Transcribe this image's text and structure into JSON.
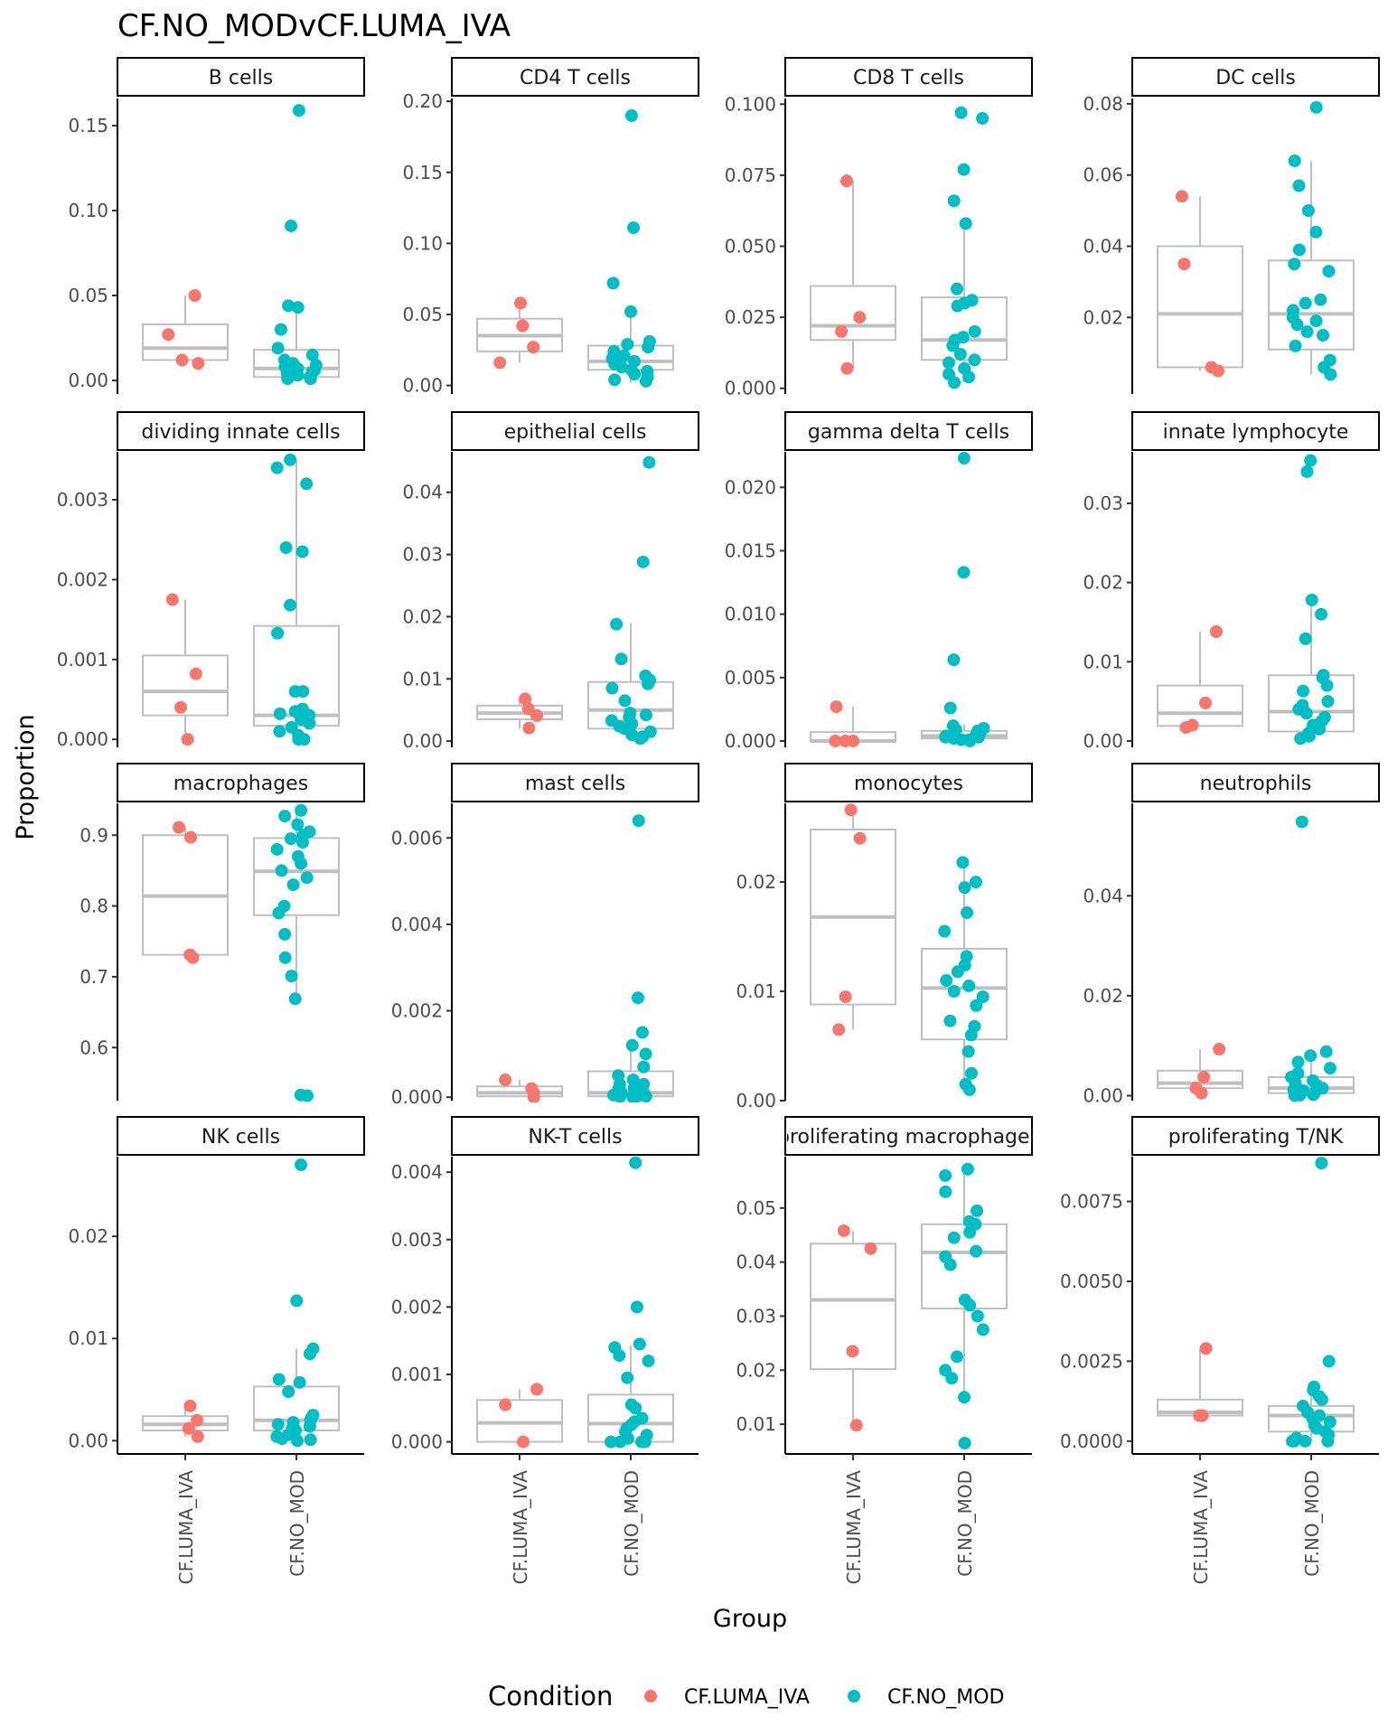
{
  "chart_data": {
    "type": "boxplot",
    "title": "CF.NO_MODvCF.LUMA_IVA",
    "xlabel": "Group",
    "ylabel": "Proportion",
    "categories": [
      "CF.LUMA_IVA",
      "CF.NO_MOD"
    ],
    "legend": {
      "title": "Condition",
      "placement": "bottom",
      "entries": [
        {
          "name": "CF.LUMA_IVA",
          "color": "#F8766D"
        },
        {
          "name": "CF.NO_MOD",
          "color": "#00BFC4"
        }
      ]
    },
    "box_color": "#bfbfbf",
    "grid": false,
    "panels": [
      {
        "title": "B cells",
        "ylim": [
          -0.008,
          0.166
        ],
        "yticks": [
          "0.00",
          "0.05",
          "0.10",
          "0.15"
        ],
        "yticks_values": [
          0,
          0.05,
          0.1,
          0.15
        ],
        "boxes": [
          [
            0.011,
            0.012,
            0.019,
            0.033,
            0.05
          ],
          [
            0,
            0.002,
            0.007,
            0.018,
            0.044
          ]
        ],
        "points": [
          [
            0.05,
            0.027,
            0.012,
            0.01
          ],
          [
            0.159,
            0.091,
            0.044,
            0.043,
            0.03,
            0.019,
            0.015,
            0.012,
            0.01,
            0.009,
            0.008,
            0.007,
            0.006,
            0.005,
            0.004,
            0.003,
            0.002,
            0.002,
            0.001,
            0.001
          ]
        ]
      },
      {
        "title": "CD4 T cells",
        "ylim": [
          -0.006,
          0.202
        ],
        "yticks": [
          "0.00",
          "0.05",
          "0.10",
          "0.15",
          "0.20"
        ],
        "yticks_values": [
          0,
          0.05,
          0.1,
          0.15,
          0.2
        ],
        "boxes": [
          [
            0.016,
            0.024,
            0.035,
            0.047,
            0.058
          ],
          [
            0.002,
            0.011,
            0.017,
            0.028,
            0.051
          ]
        ],
        "points": [
          [
            0.058,
            0.042,
            0.027,
            0.016
          ],
          [
            0.19,
            0.111,
            0.072,
            0.052,
            0.031,
            0.029,
            0.027,
            0.024,
            0.021,
            0.019,
            0.017,
            0.016,
            0.015,
            0.013,
            0.011,
            0.01,
            0.008,
            0.006,
            0.004,
            0.003
          ]
        ]
      },
      {
        "title": "CD8 T cells",
        "ylim": [
          -0.002,
          0.102
        ],
        "yticks": [
          "0.000",
          "0.025",
          "0.050",
          "0.075",
          "0.100"
        ],
        "yticks_values": [
          0,
          0.025,
          0.05,
          0.075,
          0.1
        ],
        "boxes": [
          [
            0.007,
            0.017,
            0.022,
            0.036,
            0.073
          ],
          [
            0.002,
            0.01,
            0.017,
            0.032,
            0.058
          ]
        ],
        "points": [
          [
            0.073,
            0.025,
            0.02,
            0.007
          ],
          [
            0.097,
            0.095,
            0.077,
            0.066,
            0.058,
            0.035,
            0.031,
            0.03,
            0.029,
            0.02,
            0.018,
            0.017,
            0.015,
            0.012,
            0.01,
            0.009,
            0.007,
            0.005,
            0.004,
            0.002
          ]
        ]
      },
      {
        "title": "DC cells",
        "ylim": [
          -0.0015,
          0.0815
        ],
        "yticks": [
          "0.02",
          "0.04",
          "0.06",
          "0.08"
        ],
        "yticks_values": [
          0.02,
          0.04,
          0.06,
          0.08
        ],
        "boxes": [
          [
            0.005,
            0.006,
            0.021,
            0.04,
            0.054
          ],
          [
            0.004,
            0.011,
            0.021,
            0.036,
            0.064
          ]
        ],
        "points": [
          [
            0.054,
            0.035,
            0.006,
            0.005
          ],
          [
            0.079,
            0.064,
            0.057,
            0.05,
            0.044,
            0.039,
            0.035,
            0.033,
            0.025,
            0.024,
            0.022,
            0.02,
            0.019,
            0.018,
            0.016,
            0.015,
            0.012,
            0.008,
            0.006,
            0.004
          ]
        ]
      },
      {
        "title": "dividing innate cells",
        "ylim": [
          -0.0001,
          0.0036
        ],
        "yticks": [
          "0.000",
          "0.001",
          "0.002",
          "0.003"
        ],
        "yticks_values": [
          0,
          0.001,
          0.002,
          0.003
        ],
        "boxes": [
          [
            0.0,
            0.0003,
            0.0006,
            0.00105,
            0.00175
          ],
          [
            0.0,
            0.00017,
            0.0003,
            0.00142,
            0.0035
          ]
        ],
        "points": [
          [
            0.00175,
            0.00082,
            0.0004,
            0.0
          ],
          [
            0.0035,
            0.0034,
            0.0032,
            0.0024,
            0.00235,
            0.00168,
            0.00133,
            0.0006,
            0.0006,
            0.00038,
            0.00035,
            0.00032,
            0.0003,
            0.00025,
            0.0002,
            0.00015,
            0.0001,
            5e-05,
            0.0,
            0.0
          ]
        ]
      },
      {
        "title": "epithelial cells",
        "ylim": [
          -0.001,
          0.0465
        ],
        "yticks": [
          "0.00",
          "0.01",
          "0.02",
          "0.03",
          "0.04"
        ],
        "yticks_values": [
          0,
          0.01,
          0.02,
          0.03,
          0.04
        ],
        "boxes": [
          [
            0.002,
            0.0035,
            0.0045,
            0.0057,
            0.0068
          ],
          [
            0.0,
            0.002,
            0.005,
            0.0095,
            0.019
          ]
        ],
        "points": [
          [
            0.0068,
            0.0052,
            0.0041,
            0.0021
          ],
          [
            0.0448,
            0.0288,
            0.0188,
            0.0132,
            0.0105,
            0.0098,
            0.0092,
            0.0085,
            0.0065,
            0.0045,
            0.0042,
            0.0038,
            0.0033,
            0.0028,
            0.0024,
            0.002,
            0.0015,
            0.001,
            0.0007,
            0.0004
          ]
        ]
      },
      {
        "title": "gamma delta T cells",
        "ylim": [
          -0.0005,
          0.0228
        ],
        "yticks": [
          "0.000",
          "0.005",
          "0.010",
          "0.015",
          "0.020"
        ],
        "yticks_values": [
          0,
          0.005,
          0.01,
          0.015,
          0.02
        ],
        "boxes": [
          [
            0.0,
            0.0,
            0.0,
            0.0007,
            0.0027
          ],
          [
            0.0,
            0.0002,
            0.0004,
            0.0008,
            0.0013
          ]
        ],
        "points": [
          [
            0.0027,
            0.0,
            0.0,
            0.0
          ],
          [
            0.0223,
            0.0133,
            0.0064,
            0.0026,
            0.0012,
            0.001,
            0.0009,
            0.0008,
            0.0007,
            0.0006,
            0.0005,
            0.0004,
            0.0004,
            0.0003,
            0.0003,
            0.0002,
            0.0002,
            0.0001,
            0.0001,
            0.0
          ]
        ]
      },
      {
        "title": "innate lymphocyte",
        "ylim": [
          -0.0008,
          0.0365
        ],
        "yticks": [
          "0.00",
          "0.01",
          "0.02",
          "0.03"
        ],
        "yticks_values": [
          0,
          0.01,
          0.02,
          0.03
        ],
        "boxes": [
          [
            0.0018,
            0.0019,
            0.0035,
            0.007,
            0.0138
          ],
          [
            0.0,
            0.0012,
            0.0037,
            0.0083,
            0.0176
          ]
        ],
        "points": [
          [
            0.0138,
            0.0048,
            0.002,
            0.0017
          ],
          [
            0.0354,
            0.034,
            0.0178,
            0.016,
            0.0129,
            0.0083,
            0.008,
            0.007,
            0.0063,
            0.005,
            0.0045,
            0.004,
            0.0035,
            0.003,
            0.0025,
            0.002,
            0.0015,
            0.001,
            0.0006,
            0.0003
          ]
        ]
      },
      {
        "title": "macrophages",
        "ylim": [
          0.525,
          0.945
        ],
        "yticks": [
          "0.6",
          "0.7",
          "0.8",
          "0.9"
        ],
        "yticks_values": [
          0.6,
          0.7,
          0.8,
          0.9
        ],
        "boxes": [
          [
            0.727,
            0.731,
            0.814,
            0.9,
            0.911
          ],
          [
            0.675,
            0.787,
            0.849,
            0.896,
            0.935
          ]
        ],
        "points": [
          [
            0.911,
            0.897,
            0.731,
            0.727
          ],
          [
            0.935,
            0.927,
            0.915,
            0.905,
            0.9,
            0.895,
            0.89,
            0.88,
            0.87,
            0.86,
            0.85,
            0.84,
            0.83,
            0.8,
            0.79,
            0.76,
            0.727,
            0.701,
            0.669,
            0.533,
            0.532
          ]
        ]
      },
      {
        "title": "mast cells",
        "ylim": [
          -8e-05,
          0.0068
        ],
        "yticks": [
          "0.000",
          "0.002",
          "0.004",
          "0.006"
        ],
        "yticks_values": [
          0,
          0.002,
          0.004,
          0.006
        ],
        "boxes": [
          [
            0.0,
            2e-05,
            0.0001,
            0.00025,
            0.0004
          ],
          [
            0.0,
            2e-05,
            0.0001,
            0.0006,
            0.0012
          ]
        ],
        "points": [
          [
            0.0004,
            0.0002,
            0.0001,
            0.0
          ],
          [
            0.0064,
            0.0023,
            0.0015,
            0.0012,
            0.001,
            0.0007,
            0.0005,
            0.0004,
            0.0003,
            0.0003,
            0.0002,
            0.0002,
            0.0001,
            0.0001,
            5e-05,
            3e-05,
            2e-05,
            1e-05,
            0.0,
            0.0
          ]
        ]
      },
      {
        "title": "monocytes",
        "ylim": [
          0.0,
          0.0272
        ],
        "yticks": [
          "0.00",
          "0.01",
          "0.02"
        ],
        "yticks_values": [
          0,
          0.01,
          0.02
        ],
        "boxes": [
          [
            0.0065,
            0.0088,
            0.0168,
            0.0248,
            0.0266
          ],
          [
            0.0015,
            0.0056,
            0.0103,
            0.0139,
            0.0218
          ]
        ],
        "points": [
          [
            0.0266,
            0.024,
            0.0095,
            0.0065
          ],
          [
            0.0218,
            0.02,
            0.0195,
            0.0172,
            0.0155,
            0.0132,
            0.0124,
            0.0118,
            0.011,
            0.0105,
            0.01,
            0.0095,
            0.0087,
            0.0073,
            0.0068,
            0.006,
            0.0045,
            0.0025,
            0.0015,
            0.001
          ]
        ]
      },
      {
        "title": "neutrophils",
        "ylim": [
          -0.001,
          0.0585
        ],
        "yticks": [
          "0.00",
          "0.02",
          "0.04"
        ],
        "yticks_values": [
          0,
          0.02,
          0.04
        ],
        "boxes": [
          [
            0.0005,
            0.0015,
            0.0025,
            0.005,
            0.0093
          ],
          [
            0.0,
            0.0005,
            0.0015,
            0.0037,
            0.0088
          ]
        ],
        "points": [
          [
            0.0093,
            0.0037,
            0.0015,
            0.0005
          ],
          [
            0.0548,
            0.0088,
            0.008,
            0.0067,
            0.0055,
            0.0045,
            0.0037,
            0.003,
            0.0025,
            0.002,
            0.0017,
            0.0015,
            0.0012,
            0.001,
            0.0008,
            0.0006,
            0.0004,
            0.0002,
            0.0001,
            0.0
          ]
        ]
      },
      {
        "title": "NK cells",
        "ylim": [
          -0.0013,
          0.0278
        ],
        "yticks": [
          "0.00",
          "0.01",
          "0.02"
        ],
        "yticks_values": [
          0,
          0.01,
          0.02
        ],
        "boxes": [
          [
            0.0004,
            0.001,
            0.0016,
            0.0024,
            0.0034
          ],
          [
            0.0,
            0.001,
            0.002,
            0.0053,
            0.009
          ]
        ],
        "points": [
          [
            0.0034,
            0.002,
            0.0012,
            0.0004
          ],
          [
            0.027,
            0.0137,
            0.009,
            0.0085,
            0.006,
            0.0057,
            0.0048,
            0.0025,
            0.0022,
            0.002,
            0.0018,
            0.0016,
            0.0014,
            0.0012,
            0.001,
            0.0006,
            0.0004,
            0.0002,
            0.0001,
            0.0
          ]
        ]
      },
      {
        "title": "NK-T cells",
        "ylim": [
          -0.00018,
          0.00423
        ],
        "yticks": [
          "0.000",
          "0.001",
          "0.002",
          "0.003",
          "0.004"
        ],
        "yticks_values": [
          0,
          0.001,
          0.002,
          0.003,
          0.004
        ],
        "boxes": [
          [
            0.0,
            0.0,
            0.00028,
            0.00062,
            0.00078
          ],
          [
            0.0,
            0.0,
            0.00027,
            0.0007,
            0.00143
          ]
        ],
        "points": [
          [
            0.00078,
            0.00055,
            0.0
          ],
          [
            0.00414,
            0.002,
            0.00145,
            0.0014,
            0.00128,
            0.0012,
            0.00095,
            0.00055,
            0.0005,
            0.00035,
            0.0003,
            0.00025,
            0.0002,
            0.00015,
            0.0001,
            5e-05,
            0.0,
            0.0,
            0.0,
            0.0
          ]
        ]
      },
      {
        "title": "proliferating macrophages",
        "ylim": [
          0.0045,
          0.0595
        ],
        "yticks": [
          "0.01",
          "0.02",
          "0.03",
          "0.04",
          "0.05"
        ],
        "yticks_values": [
          0.01,
          0.02,
          0.03,
          0.04,
          0.05
        ],
        "boxes": [
          [
            0.0098,
            0.0202,
            0.033,
            0.0434,
            0.0458
          ],
          [
            0.015,
            0.0314,
            0.0418,
            0.047,
            0.0572
          ]
        ],
        "points": [
          [
            0.0458,
            0.0425,
            0.0235,
            0.0098
          ],
          [
            0.0572,
            0.056,
            0.053,
            0.0495,
            0.0475,
            0.047,
            0.0455,
            0.0445,
            0.042,
            0.041,
            0.0395,
            0.033,
            0.032,
            0.03,
            0.0275,
            0.0225,
            0.02,
            0.0185,
            0.015,
            0.0065
          ]
        ]
      },
      {
        "title": "proliferating T/NK",
        "ylim": [
          -0.0004,
          0.0089
        ],
        "yticks": [
          "0.0000",
          "0.0025",
          "0.0050",
          "0.0075"
        ],
        "yticks_values": [
          0,
          0.0025,
          0.005,
          0.0075
        ],
        "boxes": [
          [
            0.0008,
            0.0008,
            0.0009,
            0.0013,
            0.0029
          ],
          [
            0.0,
            0.0003,
            0.0008,
            0.0011,
            0.0017
          ]
        ],
        "points": [
          [
            0.0029,
            0.0008,
            0.0008
          ],
          [
            0.0087,
            0.0025,
            0.0017,
            0.0016,
            0.0014,
            0.0013,
            0.0011,
            0.0009,
            0.0008,
            0.0007,
            0.0006,
            0.0005,
            0.0004,
            0.0003,
            0.0002,
            0.0001,
            0.0,
            0.0,
            0.0,
            0.0
          ]
        ]
      }
    ]
  }
}
